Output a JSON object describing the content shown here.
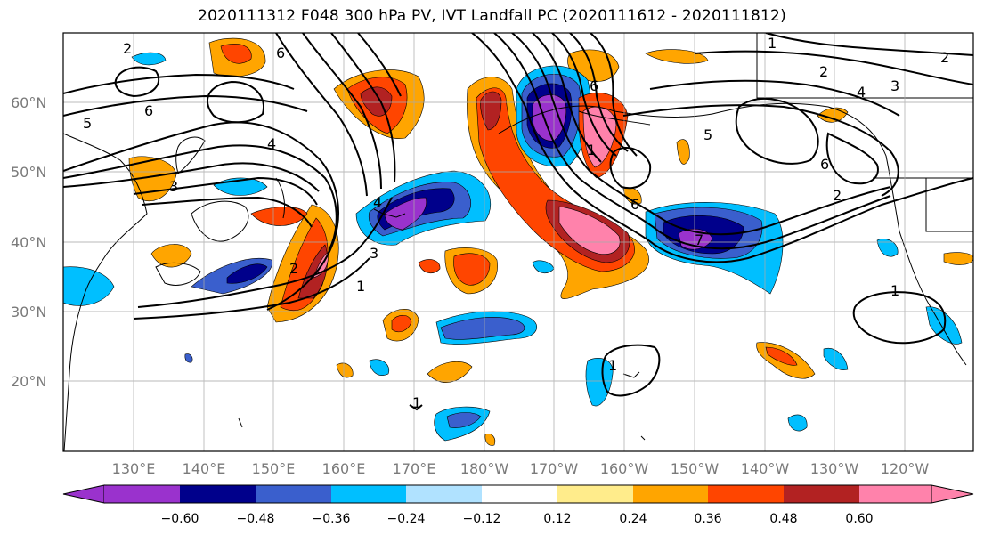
{
  "title": "2020111312 F048 300 hPa PV, IVT Landfall PC (2020111612 - 2020111812)",
  "latitude_labels": [
    "60°N",
    "50°N",
    "40°N",
    "30°N",
    "20°N"
  ],
  "longitude_labels": [
    "130°E",
    "140°E",
    "150°E",
    "160°E",
    "170°E",
    "180°W",
    "170°W",
    "160°W",
    "150°W",
    "140°W",
    "130°W",
    "120°W"
  ],
  "colorbar": {
    "colors": [
      "#9a32cd",
      "#00008b",
      "#3a5fcd",
      "#00bfff",
      "#b0e2ff",
      "#ffffff",
      "#ffec8b",
      "#ffa500",
      "#ff4500",
      "#b22222",
      "#ff82ab"
    ],
    "tick_labels": [
      "−0.60",
      "−0.48",
      "−0.36",
      "−0.24",
      "−0.12",
      "0.12",
      "0.24",
      "0.36",
      "0.48",
      "0.60"
    ]
  },
  "contour_labels": [
    "2",
    "6",
    "5",
    "6",
    "3",
    "4",
    "3",
    "2",
    "1",
    "2",
    "4",
    "3",
    "2",
    "4",
    "5",
    "6",
    "6",
    "2",
    "1",
    "6",
    "7",
    "1",
    "1",
    "1",
    "1"
  ]
}
